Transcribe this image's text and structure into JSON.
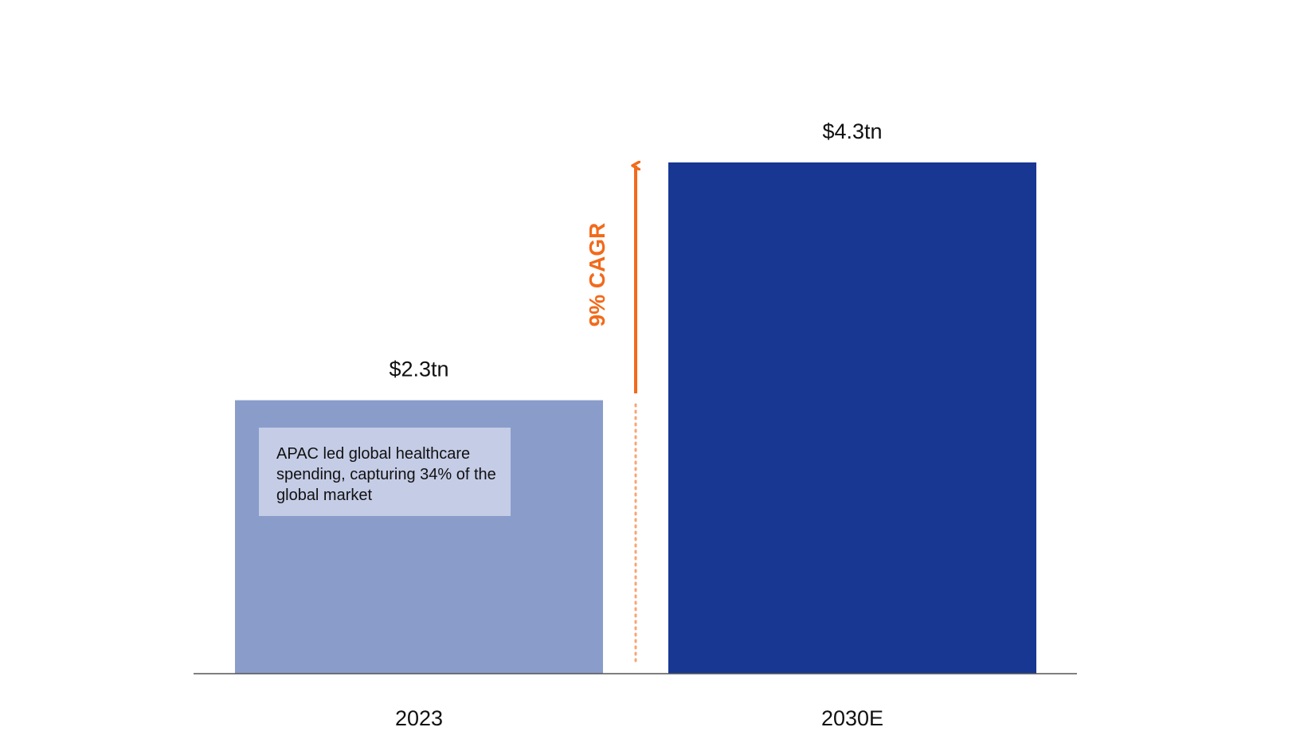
{
  "chart_data": {
    "type": "bar",
    "categories": [
      "2023",
      "2030E"
    ],
    "values": [
      2.3,
      4.3
    ],
    "value_labels": [
      "$2.3tn",
      "$4.3tn"
    ],
    "ylim": [
      0,
      4.3
    ],
    "grid": false,
    "legend": "none",
    "colors": [
      "#8a9cca",
      "#173793"
    ],
    "annotations": {
      "growth": "9% CAGR",
      "note": "APAC led global healthcare spending, capturing 34% of the global market"
    }
  },
  "colors": {
    "accent": "#f26a1b",
    "note_box_bg": "#c5cce6",
    "axis": "#555555"
  }
}
